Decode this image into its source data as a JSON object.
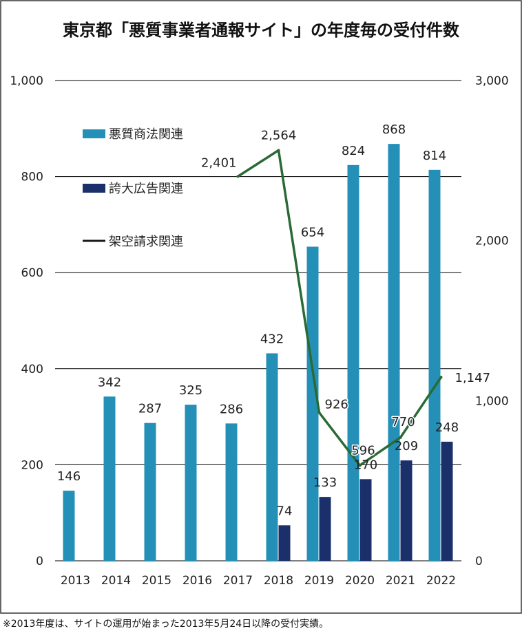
{
  "colors": {
    "series1": "#2490b8",
    "series2": "#1b2f6b",
    "series3": "#2a6a35",
    "legend_line": "#1a1a1a"
  },
  "chart_data": {
    "type": "bar",
    "title": "東京都「悪質事業者通報サイト」の年度毎の受付件数",
    "categories": [
      "2013",
      "2014",
      "2015",
      "2016",
      "2017",
      "2018",
      "2019",
      "2020",
      "2021",
      "2022"
    ],
    "y_left": {
      "range": [
        0,
        1000
      ],
      "ticks": [
        "0",
        "200",
        "400",
        "600",
        "800",
        "1,000"
      ]
    },
    "y_right": {
      "range": [
        0,
        3000
      ],
      "ticks": [
        "0",
        "1,000",
        "2,000",
        "3,000"
      ]
    },
    "series": [
      {
        "name": "悪質商法関連",
        "kind": "bar",
        "axis": "left",
        "values": [
          146,
          342,
          287,
          325,
          286,
          432,
          654,
          824,
          868,
          814
        ],
        "labels": [
          "146",
          "342",
          "287",
          "325",
          "286",
          "432",
          "654",
          "824",
          "868",
          "814"
        ]
      },
      {
        "name": "誇大広告関連",
        "kind": "bar",
        "axis": "left",
        "values": [
          null,
          null,
          null,
          null,
          null,
          74,
          133,
          170,
          209,
          248
        ],
        "labels": [
          "",
          "",
          "",
          "",
          "",
          "74",
          "133",
          "170",
          "209",
          "248"
        ]
      },
      {
        "name": "架空請求関連",
        "kind": "line",
        "axis": "right",
        "values": [
          null,
          null,
          null,
          null,
          2401,
          2564,
          926,
          596,
          770,
          1147
        ],
        "labels": [
          "",
          "",
          "",
          "",
          "2,401",
          "2,564",
          "926",
          "596",
          "770",
          "1,147"
        ]
      }
    ],
    "legend": "top-left",
    "grid": true
  },
  "footnote": "※2013年度は、サイトの運用が始まった2013年5月24日以降の受付実績。"
}
